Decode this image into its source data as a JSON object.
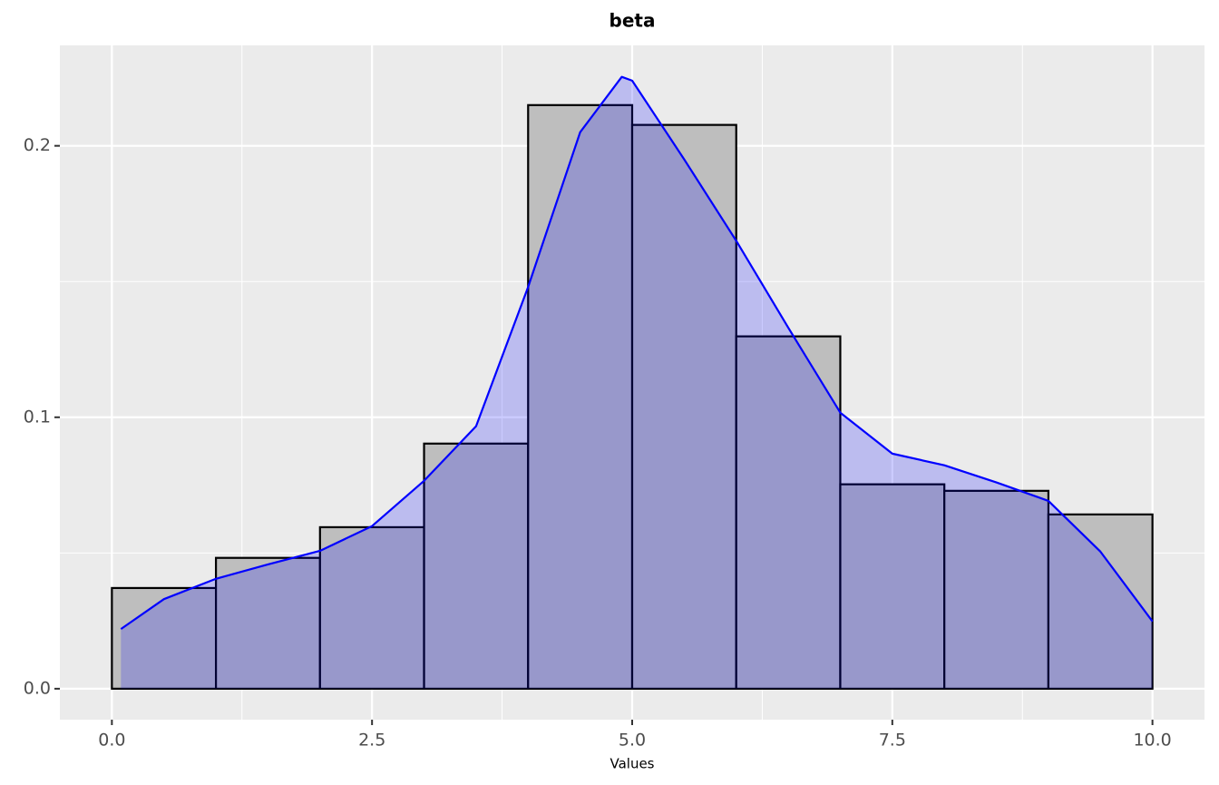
{
  "chart_data": {
    "type": "histogram",
    "title": "beta",
    "x_label": "Values",
    "bins": [
      0,
      1,
      2,
      3,
      4,
      5,
      6,
      7,
      8,
      9,
      10
    ],
    "counts": [
      0.0371,
      0.0482,
      0.0595,
      0.0903,
      0.215,
      0.2077,
      0.1298,
      0.0753,
      0.0729,
      0.0642
    ],
    "color": "#bebebe",
    "edge_color": "#000000",
    "density": {
      "color": "#0000ff",
      "x": [
        0.087,
        0.5,
        1.0,
        1.5,
        2.0,
        2.5,
        3.0,
        3.5,
        4.0,
        4.5,
        4.9,
        5.0,
        5.5,
        6.0,
        6.5,
        7.0,
        7.5,
        8.0,
        8.5,
        9.0,
        9.5,
        10.0
      ],
      "values": [
        0.022,
        0.033,
        0.0405,
        0.0458,
        0.0508,
        0.0599,
        0.0766,
        0.0967,
        0.148,
        0.205,
        0.2254,
        0.224,
        0.195,
        0.165,
        0.133,
        0.1017,
        0.0866,
        0.0823,
        0.076,
        0.0692,
        0.0505,
        0.0248
      ]
    },
    "xlim": [
      -0.5,
      10.5
    ],
    "ylim": [
      -0.0114,
      0.237
    ],
    "xticks": [
      {
        "value": 0,
        "label": "0.0"
      },
      2.5,
      {
        "value": 5,
        "label": "5.0"
      },
      7.5,
      {
        "value": 10,
        "label": "10.0"
      }
    ],
    "yticks": [
      {
        "value": 0,
        "label": "0.0"
      },
      0.1,
      0.2
    ],
    "grid": true
  }
}
